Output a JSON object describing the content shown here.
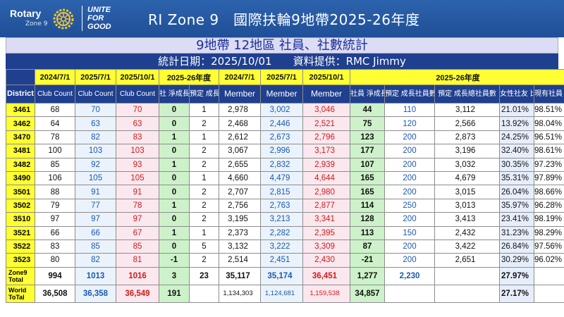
{
  "logo": {
    "brand": "Rotary",
    "zone": "Zone 9",
    "slogan_lines": [
      "UNITE",
      "FOR",
      "GOOD"
    ]
  },
  "header_title": "RI Zone 9　國際扶輪9地帶2025-26年度",
  "subtitle": "9地帶 12地區 社員、社數統計",
  "stats_line": "統計日期：2025/10/01　　資料提供：RMC Jimmy",
  "header_row1": {
    "date_2024": "2024/7/1",
    "date_2025_7": "2025/7/1",
    "date_2025_10": "2025/10/1",
    "year_2025_26": "2025-26年度",
    "m_date_2024": "2024/7/1",
    "m_date_2025_7": "2025/7/1",
    "m_date_2025_10": "2025/10/1",
    "m_year_2025_26": "2025-26年度"
  },
  "header_row2": {
    "district": "District",
    "club_count_1": "Club Count",
    "club_count_2": "Club Count",
    "club_count_3": "Club Count",
    "club_net_growth": "社\n淨成長",
    "planned_clubs": "預定\n成長社數",
    "member_1": "Member",
    "member_2": "Member",
    "member_3": "Member",
    "member_net_growth": "社員\n淨成長",
    "planned_members": "預定\n成長社員數",
    "planned_total_members": "預定\n成長總社員數",
    "female_ratio": "女性社友\n比率",
    "retention_rate": "現有社員\n續留率"
  },
  "rows": [
    {
      "district": "3461",
      "c2024": "68",
      "c2025_7": "70",
      "c2025_10": "70",
      "club_growth": "0",
      "planned_club": "1",
      "m2024": "2,978",
      "m2025_7": "3,002",
      "m2025_10": "3,046",
      "member_growth": "44",
      "planned_member": "110",
      "planned_total": "3,112",
      "female": "21.01%",
      "retention": "98.51%"
    },
    {
      "district": "3462",
      "c2024": "64",
      "c2025_7": "63",
      "c2025_10": "63",
      "club_growth": "0",
      "planned_club": "2",
      "m2024": "2,468",
      "m2025_7": "2,446",
      "m2025_10": "2,521",
      "member_growth": "75",
      "planned_member": "120",
      "planned_total": "2,566",
      "female": "13.92%",
      "retention": "98.04%"
    },
    {
      "district": "3470",
      "c2024": "78",
      "c2025_7": "82",
      "c2025_10": "83",
      "club_growth": "1",
      "planned_club": "1",
      "m2024": "2,612",
      "m2025_7": "2,673",
      "m2025_10": "2,796",
      "member_growth": "123",
      "planned_member": "200",
      "planned_total": "2,873",
      "female": "24.25%",
      "retention": "96.51%"
    },
    {
      "district": "3481",
      "c2024": "100",
      "c2025_7": "103",
      "c2025_10": "103",
      "club_growth": "0",
      "planned_club": "2",
      "m2024": "3,067",
      "m2025_7": "2,996",
      "m2025_10": "3,173",
      "member_growth": "177",
      "planned_member": "200",
      "planned_total": "3,196",
      "female": "32.40%",
      "retention": "98.61%"
    },
    {
      "district": "3482",
      "c2024": "85",
      "c2025_7": "92",
      "c2025_10": "93",
      "club_growth": "1",
      "planned_club": "2",
      "m2024": "2,655",
      "m2025_7": "2,832",
      "m2025_10": "2,939",
      "member_growth": "107",
      "planned_member": "200",
      "planned_total": "3,032",
      "female": "30.35%",
      "retention": "97.23%"
    },
    {
      "district": "3490",
      "c2024": "106",
      "c2025_7": "105",
      "c2025_10": "105",
      "club_growth": "0",
      "planned_club": "1",
      "m2024": "4,660",
      "m2025_7": "4,479",
      "m2025_10": "4,644",
      "member_growth": "165",
      "planned_member": "200",
      "planned_total": "4,679",
      "female": "35.31%",
      "retention": "97.89%"
    },
    {
      "district": "3501",
      "c2024": "88",
      "c2025_7": "91",
      "c2025_10": "91",
      "club_growth": "0",
      "planned_club": "2",
      "m2024": "2,707",
      "m2025_7": "2,815",
      "m2025_10": "2,980",
      "member_growth": "165",
      "planned_member": "200",
      "planned_total": "3,015",
      "female": "26.04%",
      "retention": "98.66%"
    },
    {
      "district": "3502",
      "c2024": "79",
      "c2025_7": "77",
      "c2025_10": "78",
      "club_growth": "1",
      "planned_club": "2",
      "m2024": "2,756",
      "m2025_7": "2,763",
      "m2025_10": "2,877",
      "member_growth": "114",
      "planned_member": "250",
      "planned_total": "3,013",
      "female": "35.97%",
      "retention": "96.28%"
    },
    {
      "district": "3510",
      "c2024": "97",
      "c2025_7": "97",
      "c2025_10": "97",
      "club_growth": "0",
      "planned_club": "2",
      "m2024": "3,195",
      "m2025_7": "3,213",
      "m2025_10": "3,341",
      "member_growth": "128",
      "planned_member": "200",
      "planned_total": "3,413",
      "female": "23.41%",
      "retention": "98.19%"
    },
    {
      "district": "3521",
      "c2024": "66",
      "c2025_7": "66",
      "c2025_10": "67",
      "club_growth": "1",
      "planned_club": "1",
      "m2024": "2,373",
      "m2025_7": "2,282",
      "m2025_10": "2,395",
      "member_growth": "113",
      "planned_member": "150",
      "planned_total": "2,432",
      "female": "31.23%",
      "retention": "98.29%"
    },
    {
      "district": "3522",
      "c2024": "83",
      "c2025_7": "85",
      "c2025_10": "85",
      "club_growth": "0",
      "planned_club": "5",
      "m2024": "3,132",
      "m2025_7": "3,222",
      "m2025_10": "3,309",
      "member_growth": "87",
      "planned_member": "200",
      "planned_total": "3,422",
      "female": "26.84%",
      "retention": "97.56%"
    },
    {
      "district": "3523",
      "c2024": "80",
      "c2025_7": "82",
      "c2025_10": "81",
      "club_growth": "-1",
      "planned_club": "2",
      "m2024": "2,514",
      "m2025_7": "2,451",
      "m2025_10": "2,430",
      "member_growth": "-21",
      "planned_member": "200",
      "planned_total": "2,651",
      "female": "30.29%",
      "retention": "96.02%"
    }
  ],
  "zone_total": {
    "label": "Zone9 Total",
    "c2024": "994",
    "c2025_7": "1013",
    "c2025_10": "1016",
    "club_growth": "3",
    "planned_club": "23",
    "m2024": "35,117",
    "m2025_7": "35,174",
    "m2025_10": "36,451",
    "member_growth": "1,277",
    "planned_member": "2,230",
    "planned_total": "",
    "female": "27.97%",
    "retention": ""
  },
  "world_total": {
    "label": "World ToTal",
    "c2024": "36,508",
    "c2025_7": "36,358",
    "c2025_10": "36,549",
    "club_growth": "191",
    "planned_club": "",
    "m2024": "1,134,303",
    "m2025_7": "1,124,681",
    "m2025_10": "1,159,538",
    "member_growth": "34,857",
    "planned_member": "",
    "planned_total": "",
    "female": "27.17%",
    "retention": ""
  }
}
